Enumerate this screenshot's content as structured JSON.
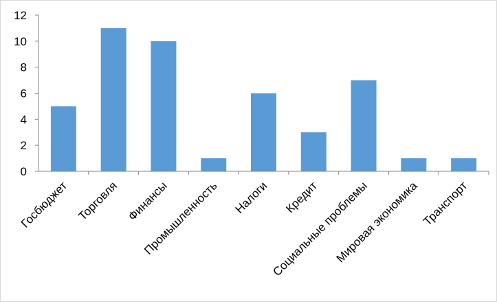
{
  "chart_data": {
    "type": "bar",
    "categories": [
      "Госбюджет",
      "Торговля",
      "Финансы",
      "Промышленность",
      "Налоги",
      "Кредит",
      "Социальные проблемы",
      "Мировая экономика",
      "Транспорт"
    ],
    "values": [
      5,
      11,
      10,
      1,
      6,
      3,
      7,
      1,
      1
    ],
    "ylim": [
      0,
      12
    ],
    "yticks": [
      "0",
      "2",
      "4",
      "6",
      "8",
      "10",
      "12"
    ],
    "grid": false,
    "legend": "none",
    "bar_color": "#5b9bd5",
    "axis_color": "#868686"
  }
}
